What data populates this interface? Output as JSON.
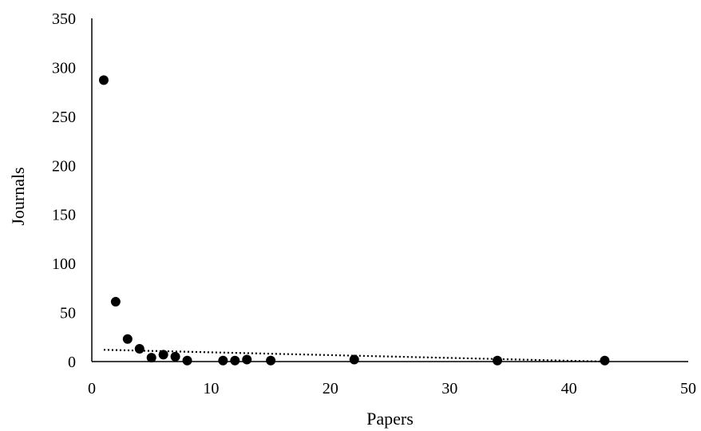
{
  "chart_data": {
    "type": "scatter",
    "title": "",
    "xlabel": "Papers",
    "ylabel": "Journals",
    "xlim": [
      0,
      50
    ],
    "ylim": [
      0,
      350
    ],
    "x_ticks": [
      0,
      10,
      20,
      30,
      40,
      50
    ],
    "y_ticks": [
      0,
      50,
      100,
      150,
      200,
      250,
      300,
      350
    ],
    "grid": false,
    "legend": "none",
    "marker_color": "#000000",
    "series": [
      {
        "points": [
          {
            "x": 1,
            "y": 287
          },
          {
            "x": 2,
            "y": 61
          },
          {
            "x": 3,
            "y": 23
          },
          {
            "x": 4,
            "y": 13
          },
          {
            "x": 5,
            "y": 4
          },
          {
            "x": 6,
            "y": 7
          },
          {
            "x": 7,
            "y": 5
          },
          {
            "x": 8,
            "y": 1
          },
          {
            "x": 11,
            "y": 1
          },
          {
            "x": 12,
            "y": 1
          },
          {
            "x": 13,
            "y": 2
          },
          {
            "x": 15,
            "y": 1
          },
          {
            "x": 22,
            "y": 2
          },
          {
            "x": 34,
            "y": 1
          },
          {
            "x": 43,
            "y": 1
          }
        ]
      }
    ],
    "trendline": {
      "style": "dotted",
      "x_range": [
        1,
        43
      ],
      "y_at_start": 12,
      "y_at_end": 0
    }
  }
}
